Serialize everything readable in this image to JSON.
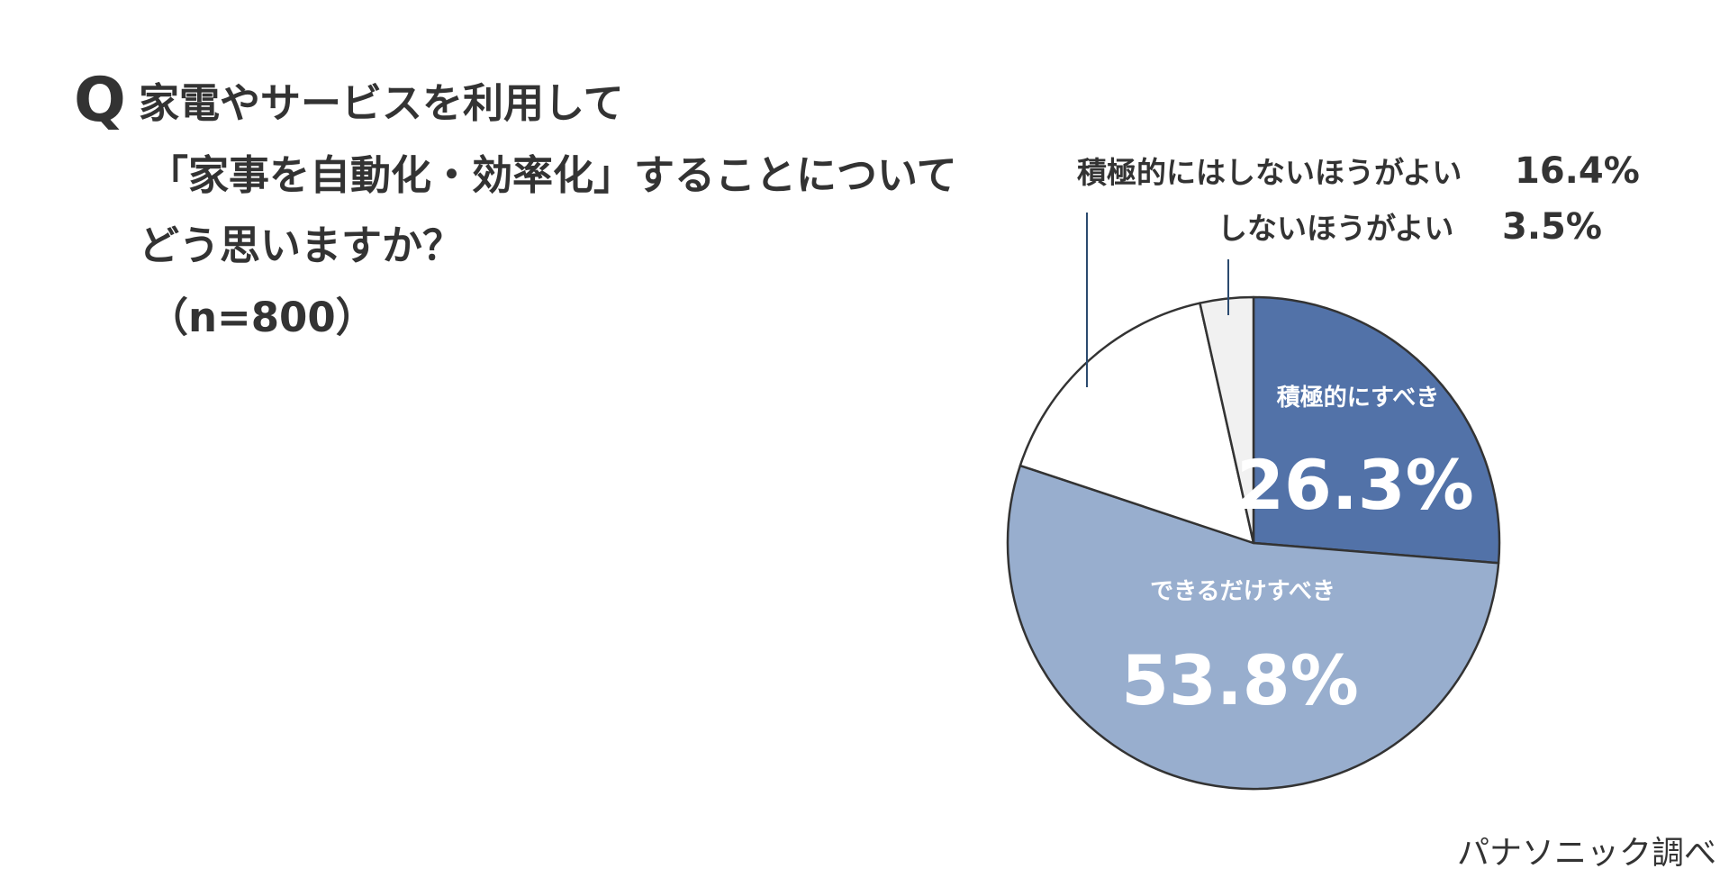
{
  "question": {
    "mark": "Q",
    "lines": [
      "家電やサービスを利用して",
      "「家事を自動化・効率化」することについて",
      "どう思いますか？",
      "（n=800）"
    ]
  },
  "source": "パナソニック調べ",
  "chart_data": {
    "type": "pie",
    "title": "",
    "start_angle_deg": 0,
    "direction": "clockwise",
    "legend": "none",
    "slices": [
      {
        "label": "積極的にすべき",
        "value": 26.3,
        "value_label": "26.3%",
        "color": "#5272A8",
        "text_color": "#ffffff",
        "label_placement": "inside"
      },
      {
        "label": "できるだけすべき",
        "value": 53.8,
        "value_label": "53.8%",
        "color": "#98AECE",
        "text_color": "#ffffff",
        "label_placement": "inside"
      },
      {
        "label": "積極的にはしないほうがよい",
        "value": 16.4,
        "value_label": "16.4%",
        "color": "#ffffff",
        "text_color": "#333333",
        "label_placement": "outside"
      },
      {
        "label": "しないほうがよい",
        "value": 3.5,
        "value_label": "3.5%",
        "color": "#F1F1F1",
        "text_color": "#333333",
        "label_placement": "outside"
      }
    ],
    "outline_color": "#333333",
    "leader_color": "#2B4A6F"
  }
}
